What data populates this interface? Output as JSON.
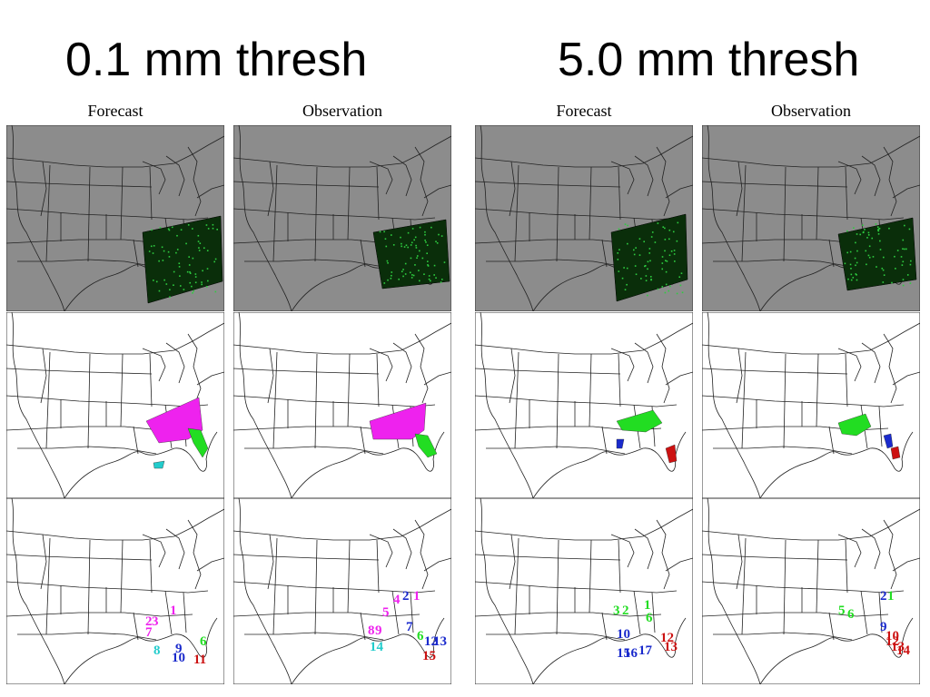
{
  "titles": {
    "left": "0.1 mm thresh",
    "right": "5.0 mm thresh"
  },
  "column_labels": [
    "Forecast",
    "Observation",
    "Forecast",
    "Observation"
  ],
  "colors": {
    "gray_bg": "#8c8c8c",
    "precip_dark": "#0a2e0a",
    "precip_light": "#2ecc40",
    "magenta": "#ee22ee",
    "green": "#22dd22",
    "blue": "#1a2acc",
    "cyan": "#22cccc",
    "red": "#cc1111"
  },
  "objects": {
    "p1_forecast": [
      {
        "t": "1",
        "c": "magenta"
      },
      {
        "t": "2",
        "c": "magenta"
      },
      {
        "t": "3",
        "c": "magenta"
      },
      {
        "t": "7",
        "c": "magenta"
      },
      {
        "t": "8",
        "c": "cyan"
      },
      {
        "t": "9",
        "c": "blue"
      },
      {
        "t": "10",
        "c": "blue"
      },
      {
        "t": "6",
        "c": "green"
      },
      {
        "t": "11",
        "c": "red"
      }
    ],
    "p1_observation": [
      {
        "t": "1",
        "c": "magenta"
      },
      {
        "t": "2",
        "c": "blue"
      },
      {
        "t": "4",
        "c": "magenta"
      },
      {
        "t": "5",
        "c": "magenta"
      },
      {
        "t": "8",
        "c": "magenta"
      },
      {
        "t": "9",
        "c": "magenta"
      },
      {
        "t": "14",
        "c": "cyan"
      },
      {
        "t": "7",
        "c": "blue"
      },
      {
        "t": "6",
        "c": "green"
      },
      {
        "t": "13",
        "c": "blue"
      },
      {
        "t": "12",
        "c": "blue"
      },
      {
        "t": "15",
        "c": "red"
      }
    ],
    "p2_forecast": [
      {
        "t": "2",
        "c": "green"
      },
      {
        "t": "3",
        "c": "green"
      },
      {
        "t": "1",
        "c": "green"
      },
      {
        "t": "6",
        "c": "green"
      },
      {
        "t": "10",
        "c": "blue"
      },
      {
        "t": "15",
        "c": "blue"
      },
      {
        "t": "16",
        "c": "blue"
      },
      {
        "t": "17",
        "c": "blue"
      },
      {
        "t": "12",
        "c": "red"
      },
      {
        "t": "13",
        "c": "red"
      }
    ],
    "p2_observation": [
      {
        "t": "5",
        "c": "green"
      },
      {
        "t": "6",
        "c": "green"
      },
      {
        "t": "2",
        "c": "blue"
      },
      {
        "t": "1",
        "c": "green"
      },
      {
        "t": "9",
        "c": "blue"
      },
      {
        "t": "10",
        "c": "red"
      },
      {
        "t": "12",
        "c": "red"
      },
      {
        "t": "13",
        "c": "red"
      },
      {
        "t": "14",
        "c": "red"
      }
    ]
  }
}
